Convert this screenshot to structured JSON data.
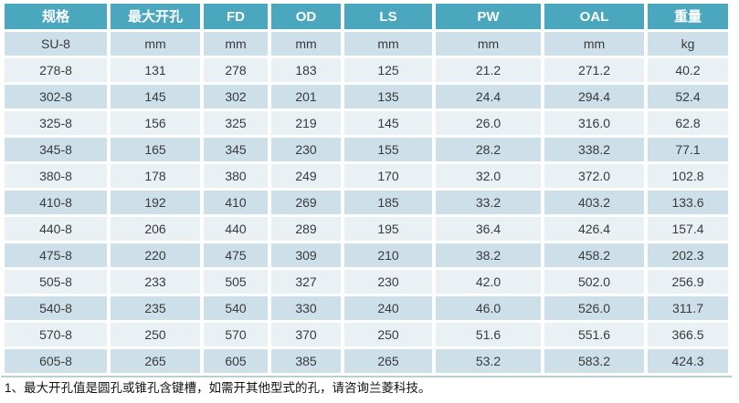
{
  "table": {
    "columns": [
      "规格",
      "最大开孔",
      "FD",
      "OD",
      "LS",
      "PW",
      "OAL",
      "重量"
    ],
    "rows": [
      [
        "SU-8",
        "mm",
        "mm",
        "mm",
        "mm",
        "mm",
        "mm",
        "kg"
      ],
      [
        "278-8",
        "131",
        "278",
        "183",
        "125",
        "21.2",
        "271.2",
        "40.2"
      ],
      [
        "302-8",
        "145",
        "302",
        "201",
        "135",
        "24.4",
        "294.4",
        "52.4"
      ],
      [
        "325-8",
        "156",
        "325",
        "219",
        "145",
        "26.0",
        "316.0",
        "62.8"
      ],
      [
        "345-8",
        "165",
        "345",
        "230",
        "155",
        "28.2",
        "338.2",
        "77.1"
      ],
      [
        "380-8",
        "178",
        "380",
        "249",
        "170",
        "32.0",
        "372.0",
        "102.8"
      ],
      [
        "410-8",
        "192",
        "410",
        "269",
        "185",
        "33.2",
        "403.2",
        "133.6"
      ],
      [
        "440-8",
        "206",
        "440",
        "289",
        "195",
        "36.4",
        "426.4",
        "157.4"
      ],
      [
        "475-8",
        "220",
        "475",
        "309",
        "210",
        "38.2",
        "458.2",
        "202.3"
      ],
      [
        "505-8",
        "233",
        "505",
        "327",
        "230",
        "42.0",
        "502.0",
        "256.9"
      ],
      [
        "540-8",
        "235",
        "540",
        "330",
        "240",
        "46.0",
        "526.0",
        "311.7"
      ],
      [
        "570-8",
        "250",
        "570",
        "370",
        "250",
        "51.6",
        "551.6",
        "366.5"
      ],
      [
        "605-8",
        "265",
        "605",
        "385",
        "265",
        "53.2",
        "583.2",
        "424.3"
      ]
    ]
  },
  "footnote": "1、最大开孔值是圆孔或锥孔含键槽，如需开其他型式的孔，请咨询兰菱科技。",
  "colors": {
    "header_bg": "#4aa7bd",
    "header_text": "#ffffff",
    "row_dark": "#cde0e9",
    "row_light": "#e9f1f5",
    "cell_text": "#3a3a3a",
    "bottom_line": "#b9ced9"
  }
}
